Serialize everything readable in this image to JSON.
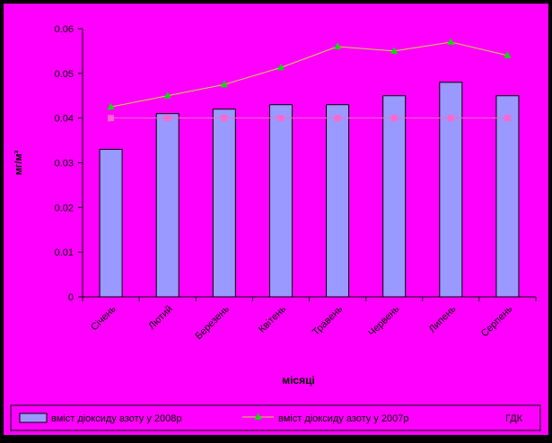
{
  "chart_data": {
    "type": "bar",
    "title": "",
    "xlabel": "місяці",
    "ylabel": "мг/м³",
    "ylim": [
      0,
      0.06
    ],
    "yticks": [
      "0",
      "0.01",
      "0.02",
      "0.03",
      "0.04",
      "0.05",
      "0.06"
    ],
    "categories": [
      "Січень",
      "Лютий",
      "Березень",
      "Квітень",
      "Травень",
      "Червень",
      "Липень",
      "Серпень"
    ],
    "grid": false,
    "legend_position": "bottom",
    "series": [
      {
        "name": "вміст діоксиду азоту у 2008р",
        "kind": "bar",
        "values": [
          0.033,
          0.041,
          0.042,
          0.043,
          0.043,
          0.045,
          0.048,
          0.045
        ]
      },
      {
        "name": "вміст діоксиду азоту у 2007р",
        "kind": "line",
        "values": [
          0.0425,
          0.045,
          0.0475,
          0.0513,
          0.056,
          0.055,
          0.057,
          0.054
        ]
      },
      {
        "name": "ГДК",
        "kind": "line",
        "values": [
          0.04,
          0.04,
          0.04,
          0.04,
          0.04,
          0.04,
          0.04,
          0.04
        ]
      }
    ]
  },
  "colors": {
    "page_bg": "#000000",
    "plot_bg": "#ff00ff",
    "bar_fill": "#9999ff",
    "bar_2008": "#9999ff",
    "line_2007": "#c8d840",
    "marker_2007": "#00e000",
    "line_gdk": "#ff66cc",
    "marker_gdk": "#ff66cc",
    "text": "#000000"
  }
}
